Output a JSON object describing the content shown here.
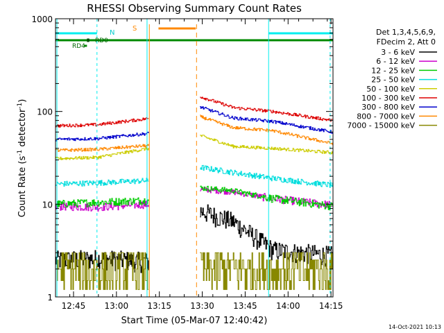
{
  "chart_data": {
    "type": "line",
    "title": "RHESSI Observing Summary Count Rates",
    "xlabel": "Start Time (05-Mar-07 12:40:42)",
    "ylabel_main": "Count Rate (s",
    "ylabel_sup1": "-1",
    "ylabel_mid": " detector",
    "ylabel_sup2": "-1",
    "ylabel_end": ")",
    "y_scale": "log",
    "ylim": [
      1,
      1000
    ],
    "xlim_minutes": [
      -2,
      95
    ],
    "x_ticks": [
      {
        "m": 4.3,
        "label": "12:45"
      },
      {
        "m": 19.3,
        "label": "13:00"
      },
      {
        "m": 34.3,
        "label": "13:15"
      },
      {
        "m": 49.3,
        "label": "13:30"
      },
      {
        "m": 64.3,
        "label": "13:45"
      },
      {
        "m": 79.3,
        "label": "14:00"
      },
      {
        "m": 94.3,
        "label": "14:15"
      }
    ],
    "y_ticks": [
      {
        "v": 1,
        "label": "1"
      },
      {
        "v": 10,
        "label": "10"
      },
      {
        "v": 100,
        "label": "100"
      },
      {
        "v": 1000,
        "label": "1000"
      }
    ],
    "legend": {
      "header_line1": "Det 1,3,4,5,6,9,",
      "header_line2": "FDecim 2, Att 0",
      "position": "right"
    },
    "series": [
      {
        "name": "3 - 6 keV",
        "color": "#000000",
        "values": [
          2.5,
          2.6,
          2.4,
          8.5,
          6.5,
          3.2,
          2.8
        ]
      },
      {
        "name": "6 - 12 keV",
        "color": "#cc00cc",
        "values": [
          9.5,
          9.3,
          10.0,
          14.5,
          13.5,
          11.5,
          9.8
        ]
      },
      {
        "name": "12 - 25 keV",
        "color": "#00cc00",
        "values": [
          10.0,
          10.5,
          11.0,
          15.0,
          14.0,
          11.5,
          9.5
        ]
      },
      {
        "name": "25 - 50 keV",
        "color": "#00dddd",
        "values": [
          16.5,
          17.0,
          18.0,
          25.0,
          22.0,
          19.0,
          16.0
        ]
      },
      {
        "name": "50 - 100 keV",
        "color": "#cccc00",
        "values": [
          31.0,
          32.0,
          40.0,
          55.0,
          42.0,
          40.0,
          36.0
        ]
      },
      {
        "name": "100 - 300 keV",
        "color": "#dd0000",
        "values": [
          70.0,
          72.0,
          84.0,
          145.0,
          110.0,
          100.0,
          80.0
        ]
      },
      {
        "name": "300 - 800 keV",
        "color": "#0000cc",
        "values": [
          50.0,
          51.0,
          58.0,
          112.0,
          85.0,
          78.0,
          60.0
        ]
      },
      {
        "name": "800 - 7000 keV",
        "color": "#ff8800",
        "values": [
          38.0,
          39.0,
          43.0,
          88.0,
          67.0,
          62.0,
          45.0
        ]
      },
      {
        "name": "7000 - 15000 keV",
        "color": "#888800",
        "values": [
          2.0,
          2.0,
          2.0,
          2.0,
          2.0,
          2.0,
          2.0
        ]
      }
    ],
    "segments": [
      {
        "m0": -2,
        "m1": 30.5
      },
      {
        "m0": 48.5,
        "m1": 95
      }
    ],
    "annotations": {
      "n_label": "N",
      "s_label": "S",
      "rd0_label": "RD0",
      "rd4_label": "RD4",
      "timestamp": "14-Oct-2021 10:13"
    }
  }
}
